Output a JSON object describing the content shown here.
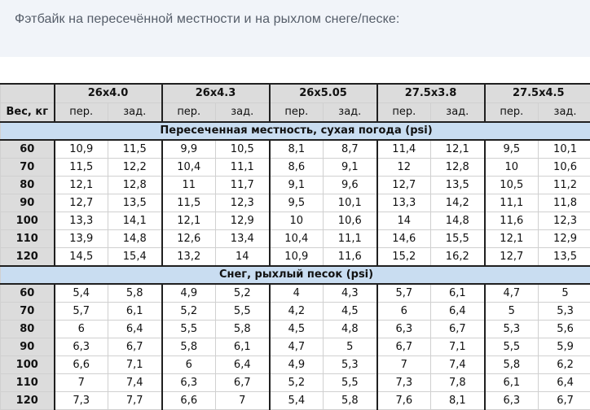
{
  "intro": {
    "text": "Фэтбайк на пересечённой местности и на рыхлом снеге/песке:"
  },
  "table": {
    "weight_label": "Вес, кг",
    "tire_sizes": [
      "26x4.0",
      "26x4.3",
      "26x5.05",
      "27.5x3.8",
      "27.5x4.5"
    ],
    "front_label": "пер.",
    "rear_label": "зад.",
    "sections": [
      {
        "title": "Пересеченная местность, сухая погода (psi)",
        "rows": [
          {
            "weight": "60",
            "values": [
              "10,9",
              "11,5",
              "9,9",
              "10,5",
              "8,1",
              "8,7",
              "11,4",
              "12,1",
              "9,5",
              "10,1"
            ]
          },
          {
            "weight": "70",
            "values": [
              "11,5",
              "12,2",
              "10,4",
              "11,1",
              "8,6",
              "9,1",
              "12",
              "12,8",
              "10",
              "10,6"
            ]
          },
          {
            "weight": "80",
            "values": [
              "12,1",
              "12,8",
              "11",
              "11,7",
              "9,1",
              "9,6",
              "12,7",
              "13,5",
              "10,5",
              "11,2"
            ]
          },
          {
            "weight": "90",
            "values": [
              "12,7",
              "13,5",
              "11,5",
              "12,3",
              "9,5",
              "10,1",
              "13,3",
              "14,2",
              "11,1",
              "11,8"
            ]
          },
          {
            "weight": "100",
            "values": [
              "13,3",
              "14,1",
              "12,1",
              "12,9",
              "10",
              "10,6",
              "14",
              "14,8",
              "11,6",
              "12,3"
            ]
          },
          {
            "weight": "110",
            "values": [
              "13,9",
              "14,8",
              "12,6",
              "13,4",
              "10,4",
              "11,1",
              "14,6",
              "15,5",
              "12,1",
              "12,9"
            ]
          },
          {
            "weight": "120",
            "values": [
              "14,5",
              "15,4",
              "13,2",
              "14",
              "10,9",
              "11,6",
              "15,2",
              "16,2",
              "12,7",
              "13,5"
            ]
          }
        ]
      },
      {
        "title": "Снег, рыхлый песок (psi)",
        "rows": [
          {
            "weight": "60",
            "values": [
              "5,4",
              "5,8",
              "4,9",
              "5,2",
              "4",
              "4,3",
              "5,7",
              "6,1",
              "4,7",
              "5"
            ]
          },
          {
            "weight": "70",
            "values": [
              "5,7",
              "6,1",
              "5,2",
              "5,5",
              "4,2",
              "4,5",
              "6",
              "6,4",
              "5",
              "5,3"
            ]
          },
          {
            "weight": "80",
            "values": [
              "6",
              "6,4",
              "5,5",
              "5,8",
              "4,5",
              "4,8",
              "6,3",
              "6,7",
              "5,3",
              "5,6"
            ]
          },
          {
            "weight": "90",
            "values": [
              "6,3",
              "6,7",
              "5,8",
              "6,1",
              "4,7",
              "5",
              "6,7",
              "7,1",
              "5,5",
              "5,9"
            ]
          },
          {
            "weight": "100",
            "values": [
              "6,6",
              "7,1",
              "6",
              "6,4",
              "4,9",
              "5,3",
              "7",
              "7,4",
              "5,8",
              "6,2"
            ]
          },
          {
            "weight": "110",
            "values": [
              "7",
              "7,4",
              "6,3",
              "6,7",
              "5,2",
              "5,5",
              "7,3",
              "7,8",
              "6,1",
              "6,4"
            ]
          },
          {
            "weight": "120",
            "values": [
              "7,3",
              "7,7",
              "6,6",
              "7",
              "5,4",
              "5,8",
              "7,6",
              "8,1",
              "6,3",
              "6,7"
            ]
          }
        ]
      }
    ]
  }
}
